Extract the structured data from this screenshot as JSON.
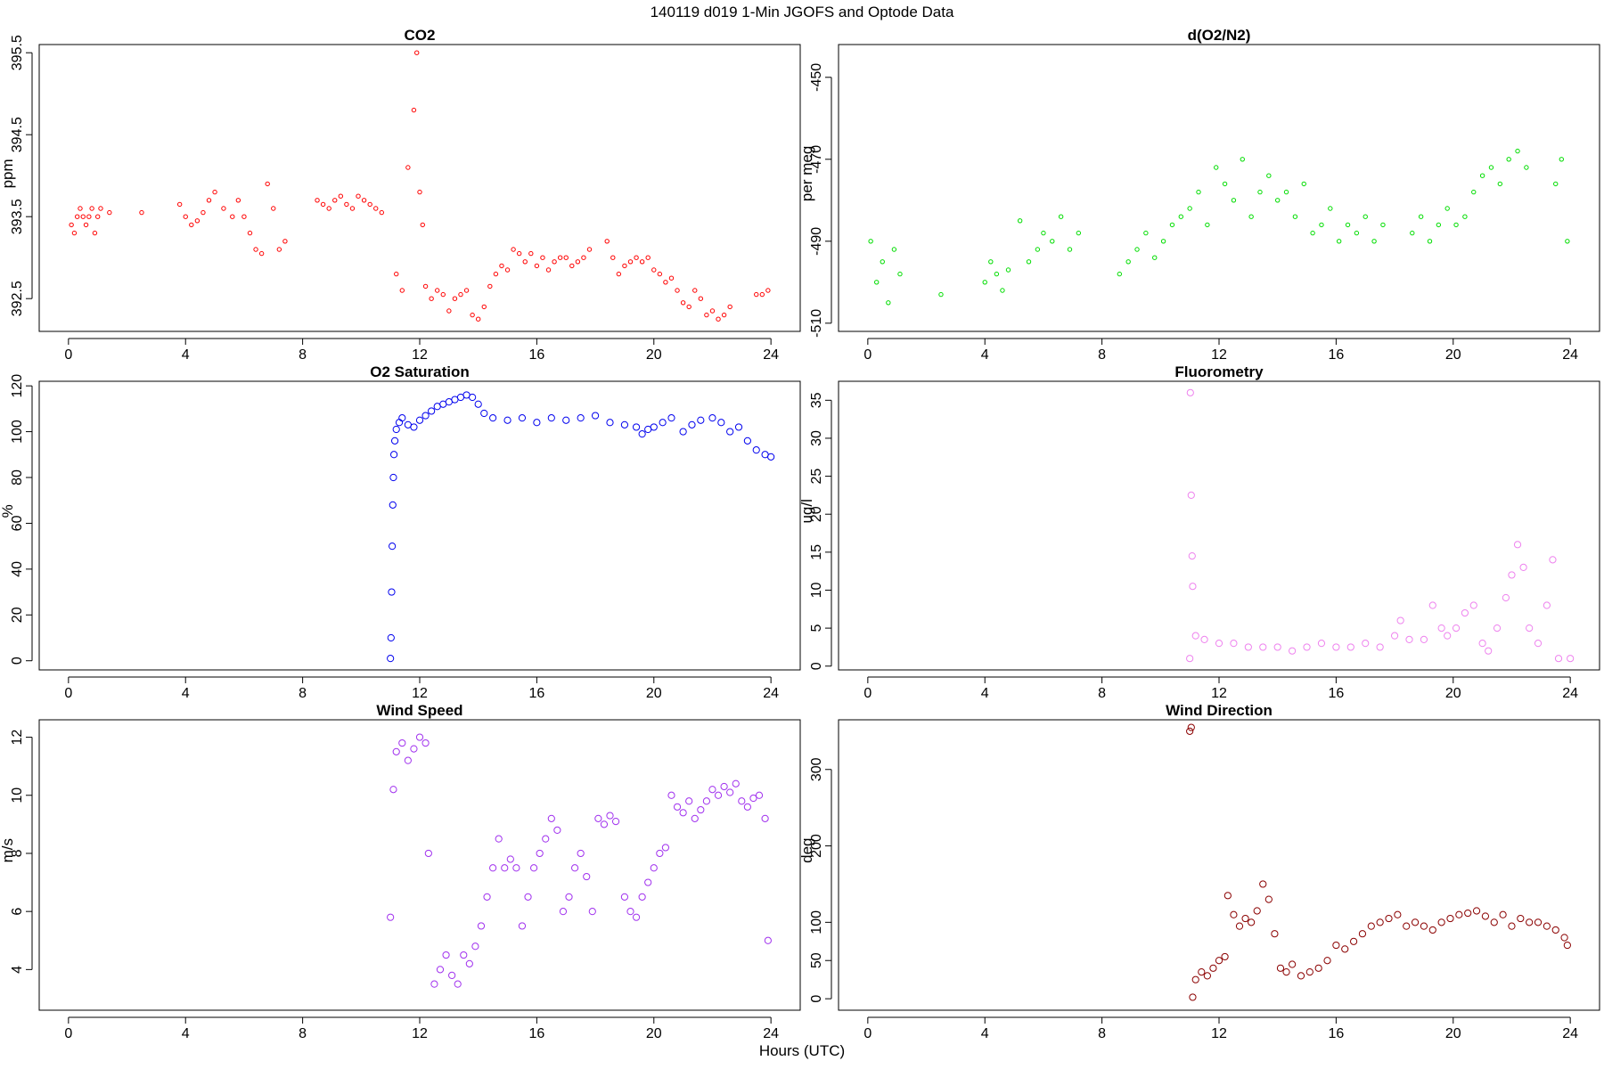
{
  "page": {
    "title": "140119   d019   1-Min  JGOFS and Optode Data",
    "xlabel": "Hours (UTC)"
  },
  "chart_data": [
    {
      "type": "scatter",
      "title": "CO2",
      "xlabel": "",
      "ylabel": "ppm",
      "color": "#ff0000",
      "xlim": [
        -1,
        25
      ],
      "ylim": [
        392.1,
        395.6
      ],
      "xticks": [
        0,
        4,
        8,
        12,
        16,
        20,
        24
      ],
      "yticks": [
        392.5,
        393.5,
        394.5,
        395.5
      ],
      "grid": false,
      "series": [
        {
          "x": [
            0.1,
            0.2,
            0.3,
            0.4,
            0.5,
            0.6,
            0.7,
            0.8,
            0.9,
            1.0,
            1.1,
            1.4,
            2.5,
            3.8,
            4.0,
            4.2,
            4.4,
            4.6,
            4.8,
            5.0,
            5.3,
            5.6,
            5.8,
            6.0,
            6.2,
            6.4,
            6.6,
            6.8,
            7.0,
            7.2,
            7.4,
            8.5,
            8.7,
            8.9,
            9.1,
            9.3,
            9.5,
            9.7,
            9.9,
            10.1,
            10.3,
            10.5,
            10.7,
            11.2,
            11.4,
            11.6,
            11.8,
            11.9,
            12.0,
            12.1,
            12.2,
            12.4,
            12.6,
            12.8,
            13.0,
            13.2,
            13.4,
            13.6,
            13.8,
            14.0,
            14.2,
            14.4,
            14.6,
            14.8,
            15.0,
            15.2,
            15.4,
            15.6,
            15.8,
            16.0,
            16.2,
            16.4,
            16.6,
            16.8,
            17.0,
            17.2,
            17.4,
            17.6,
            17.8,
            18.4,
            18.6,
            18.8,
            19.0,
            19.2,
            19.4,
            19.6,
            19.8,
            20.0,
            20.2,
            20.4,
            20.6,
            20.8,
            21.0,
            21.2,
            21.4,
            21.6,
            21.8,
            22.0,
            22.2,
            22.4,
            22.6,
            23.5,
            23.7,
            23.9
          ],
          "y": [
            393.4,
            393.3,
            393.5,
            393.6,
            393.5,
            393.4,
            393.5,
            393.6,
            393.3,
            393.5,
            393.6,
            393.55,
            393.55,
            393.65,
            393.5,
            393.4,
            393.45,
            393.55,
            393.7,
            393.8,
            393.6,
            393.5,
            393.7,
            393.5,
            393.3,
            393.1,
            393.05,
            393.9,
            393.6,
            393.1,
            393.2,
            393.7,
            393.65,
            393.6,
            393.7,
            393.75,
            393.65,
            393.6,
            393.75,
            393.7,
            393.65,
            393.6,
            393.55,
            392.8,
            392.6,
            394.1,
            394.8,
            395.5,
            393.8,
            393.4,
            392.65,
            392.5,
            392.6,
            392.55,
            392.35,
            392.5,
            392.55,
            392.6,
            392.3,
            392.25,
            392.4,
            392.65,
            392.8,
            392.9,
            392.85,
            393.1,
            393.05,
            392.95,
            393.05,
            392.9,
            393.0,
            392.85,
            392.95,
            393.0,
            393.0,
            392.9,
            392.95,
            393.0,
            393.1,
            393.2,
            393.0,
            392.8,
            392.9,
            392.95,
            393.0,
            392.95,
            393.0,
            392.85,
            392.8,
            392.7,
            392.75,
            392.6,
            392.45,
            392.4,
            392.6,
            392.5,
            392.3,
            392.35,
            392.25,
            392.3,
            392.4,
            392.55,
            392.55,
            392.6
          ]
        }
      ]
    },
    {
      "type": "scatter",
      "title": "d(O2/N2)",
      "xlabel": "",
      "ylabel": "per meg",
      "color": "#00dd00",
      "xlim": [
        -1,
        25
      ],
      "ylim": [
        -512,
        -442
      ],
      "xticks": [
        0,
        4,
        8,
        12,
        16,
        20,
        24
      ],
      "yticks": [
        -450,
        -470,
        -490,
        -510
      ],
      "grid": false,
      "series": [
        {
          "x": [
            0.1,
            0.3,
            0.5,
            0.7,
            0.9,
            1.1,
            2.5,
            4.0,
            4.2,
            4.4,
            4.6,
            4.8,
            5.2,
            5.5,
            5.8,
            6.0,
            6.3,
            6.6,
            6.9,
            7.2,
            8.6,
            8.9,
            9.2,
            9.5,
            9.8,
            10.1,
            10.4,
            10.7,
            11.0,
            11.3,
            11.6,
            11.9,
            12.2,
            12.5,
            12.8,
            13.1,
            13.4,
            13.7,
            14.0,
            14.3,
            14.6,
            14.9,
            15.2,
            15.5,
            15.8,
            16.1,
            16.4,
            16.7,
            17.0,
            17.3,
            17.6,
            18.6,
            18.9,
            19.2,
            19.5,
            19.8,
            20.1,
            20.4,
            20.7,
            21.0,
            21.3,
            21.6,
            21.9,
            22.2,
            22.5,
            23.5,
            23.7,
            23.9
          ],
          "y": [
            -490,
            -500,
            -495,
            -505,
            -492,
            -498,
            -503,
            -500,
            -495,
            -498,
            -502,
            -497,
            -485,
            -495,
            -492,
            -488,
            -490,
            -484,
            -492,
            -488,
            -498,
            -495,
            -492,
            -488,
            -494,
            -490,
            -486,
            -484,
            -482,
            -478,
            -486,
            -472,
            -476,
            -480,
            -470,
            -484,
            -478,
            -474,
            -480,
            -478,
            -484,
            -476,
            -488,
            -486,
            -482,
            -490,
            -486,
            -488,
            -484,
            -490,
            -486,
            -488,
            -484,
            -490,
            -486,
            -482,
            -486,
            -484,
            -478,
            -474,
            -472,
            -476,
            -470,
            -468,
            -472,
            -476,
            -470,
            -490
          ]
        }
      ]
    },
    {
      "type": "scatter",
      "title": "O2 Saturation",
      "xlabel": "",
      "ylabel": "%",
      "color": "#0000ee",
      "xlim": [
        -1,
        25
      ],
      "ylim": [
        -4,
        122
      ],
      "xticks": [
        0,
        4,
        8,
        12,
        16,
        20,
        24
      ],
      "yticks": [
        0,
        20,
        40,
        60,
        80,
        100,
        120
      ],
      "grid": false,
      "series": [
        {
          "x": [
            11.0,
            11.02,
            11.04,
            11.06,
            11.08,
            11.1,
            11.12,
            11.15,
            11.2,
            11.3,
            11.4,
            11.6,
            11.8,
            12.0,
            12.2,
            12.4,
            12.6,
            12.8,
            13.0,
            13.2,
            13.4,
            13.6,
            13.8,
            14.0,
            14.2,
            14.5,
            15.0,
            15.5,
            16.0,
            16.5,
            17.0,
            17.5,
            18.0,
            18.5,
            19.0,
            19.4,
            19.6,
            19.8,
            20.0,
            20.3,
            20.6,
            21.0,
            21.3,
            21.6,
            22.0,
            22.3,
            22.6,
            22.9,
            23.2,
            23.5,
            23.8,
            24.0
          ],
          "y": [
            1,
            10,
            30,
            50,
            68,
            80,
            90,
            96,
            101,
            104,
            106,
            103,
            102,
            105,
            107,
            109,
            111,
            112,
            113,
            114,
            115,
            116,
            115,
            112,
            108,
            106,
            105,
            106,
            104,
            106,
            105,
            106,
            107,
            104,
            103,
            102,
            99,
            101,
            102,
            104,
            106,
            100,
            103,
            105,
            106,
            104,
            100,
            102,
            96,
            92,
            90,
            89
          ]
        }
      ]
    },
    {
      "type": "scatter",
      "title": "Fluorometry",
      "xlabel": "",
      "ylabel": "ug/l",
      "color": "#ee82ee",
      "xlim": [
        -1,
        25
      ],
      "ylim": [
        -0.5,
        37.5
      ],
      "xticks": [
        0,
        4,
        8,
        12,
        16,
        20,
        24
      ],
      "yticks": [
        0,
        5,
        10,
        15,
        20,
        25,
        30,
        35
      ],
      "grid": false,
      "series": [
        {
          "x": [
            11.0,
            11.02,
            11.05,
            11.08,
            11.1,
            11.2,
            11.5,
            12.0,
            12.5,
            13.0,
            13.5,
            14.0,
            14.5,
            15.0,
            15.5,
            16.0,
            16.5,
            17.0,
            17.5,
            18.0,
            18.2,
            18.5,
            19.0,
            19.3,
            19.6,
            19.8,
            20.1,
            20.4,
            20.7,
            21.0,
            21.2,
            21.5,
            21.8,
            22.0,
            22.2,
            22.4,
            22.6,
            22.9,
            23.2,
            23.4,
            23.6,
            24.0
          ],
          "y": [
            1,
            36,
            22.5,
            14.5,
            10.5,
            4,
            3.5,
            3,
            3,
            2.5,
            2.5,
            2.5,
            2,
            2.5,
            3,
            2.5,
            2.5,
            3,
            2.5,
            4,
            6,
            3.5,
            3.5,
            8,
            5,
            4,
            5,
            7,
            8,
            3,
            2,
            5,
            9,
            12,
            16,
            13,
            5,
            3,
            8,
            14,
            1,
            1
          ]
        }
      ]
    },
    {
      "type": "scatter",
      "title": "Wind Speed",
      "xlabel": "",
      "ylabel": "m/s",
      "color": "#a030ee",
      "xlim": [
        -1,
        25
      ],
      "ylim": [
        2.6,
        12.6
      ],
      "xticks": [
        0,
        4,
        8,
        12,
        16,
        20,
        24
      ],
      "yticks": [
        4,
        6,
        8,
        10,
        12
      ],
      "grid": false,
      "series": [
        {
          "x": [
            11.0,
            11.1,
            11.2,
            11.4,
            11.6,
            11.8,
            12.0,
            12.2,
            12.3,
            12.5,
            12.7,
            12.9,
            13.1,
            13.3,
            13.5,
            13.7,
            13.9,
            14.1,
            14.3,
            14.5,
            14.7,
            14.9,
            15.1,
            15.3,
            15.5,
            15.7,
            15.9,
            16.1,
            16.3,
            16.5,
            16.7,
            16.9,
            17.1,
            17.3,
            17.5,
            17.7,
            17.9,
            18.1,
            18.3,
            18.5,
            18.7,
            19.0,
            19.2,
            19.4,
            19.6,
            19.8,
            20.0,
            20.2,
            20.4,
            20.6,
            20.8,
            21.0,
            21.2,
            21.4,
            21.6,
            21.8,
            22.0,
            22.2,
            22.4,
            22.6,
            22.8,
            23.0,
            23.2,
            23.4,
            23.6,
            23.8,
            23.9
          ],
          "y": [
            5.8,
            10.2,
            11.5,
            11.8,
            11.2,
            11.6,
            12.0,
            11.8,
            8.0,
            3.5,
            4.0,
            4.5,
            3.8,
            3.5,
            4.5,
            4.2,
            4.8,
            5.5,
            6.5,
            7.5,
            8.5,
            7.5,
            7.8,
            7.5,
            5.5,
            6.5,
            7.5,
            8.0,
            8.5,
            9.2,
            8.8,
            6.0,
            6.5,
            7.5,
            8.0,
            7.2,
            6.0,
            9.2,
            9.0,
            9.3,
            9.1,
            6.5,
            6.0,
            5.8,
            6.5,
            7.0,
            7.5,
            8.0,
            8.2,
            10.0,
            9.6,
            9.4,
            9.8,
            9.2,
            9.5,
            9.8,
            10.2,
            10.0,
            10.3,
            10.1,
            10.4,
            9.8,
            9.6,
            9.9,
            10.0,
            9.2,
            5.0
          ]
        }
      ]
    },
    {
      "type": "scatter",
      "title": "Wind Direction",
      "xlabel": "",
      "ylabel": "deg",
      "color": "#8b0000",
      "xlim": [
        -1,
        25
      ],
      "ylim": [
        -15,
        365
      ],
      "xticks": [
        0,
        4,
        8,
        12,
        16,
        20,
        24
      ],
      "yticks": [
        0,
        50,
        100,
        200,
        300
      ],
      "grid": false,
      "series": [
        {
          "x": [
            11.0,
            11.05,
            11.1,
            11.2,
            11.4,
            11.6,
            11.8,
            12.0,
            12.2,
            12.3,
            12.5,
            12.7,
            12.9,
            13.1,
            13.3,
            13.5,
            13.7,
            13.9,
            14.1,
            14.3,
            14.5,
            14.8,
            15.1,
            15.4,
            15.7,
            16.0,
            16.3,
            16.6,
            16.9,
            17.2,
            17.5,
            17.8,
            18.1,
            18.4,
            18.7,
            19.0,
            19.3,
            19.6,
            19.9,
            20.2,
            20.5,
            20.8,
            21.1,
            21.4,
            21.7,
            22.0,
            22.3,
            22.6,
            22.9,
            23.2,
            23.5,
            23.8,
            23.9
          ],
          "y": [
            350,
            355,
            2,
            25,
            35,
            30,
            40,
            50,
            55,
            135,
            110,
            95,
            105,
            100,
            115,
            150,
            130,
            85,
            40,
            35,
            45,
            30,
            35,
            40,
            50,
            70,
            65,
            75,
            85,
            95,
            100,
            105,
            110,
            95,
            100,
            95,
            90,
            100,
            105,
            110,
            112,
            115,
            108,
            100,
            110,
            95,
            105,
            100,
            100,
            95,
            90,
            80,
            70
          ]
        }
      ]
    }
  ]
}
